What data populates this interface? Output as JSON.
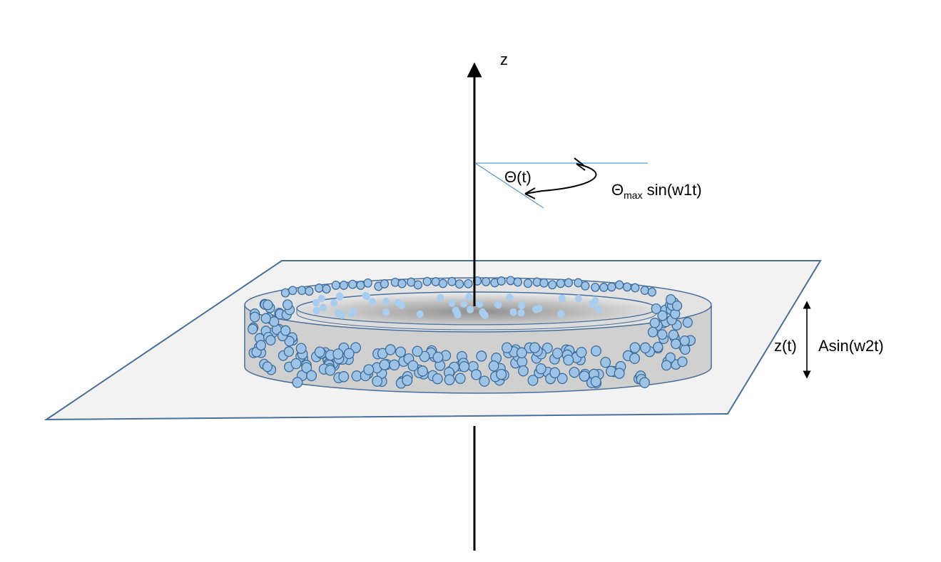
{
  "labels": {
    "z_axis": "z",
    "theta": "Θ(t)",
    "theta_sym": "Θ",
    "theta_sub": "max",
    "theta_rest": " sin(w1t)",
    "z_t": "z(t)",
    "z_formula": "Asin(w2t)"
  },
  "colors": {
    "plane_fill": "#f2f2f2",
    "plane_stroke": "#4a6f99",
    "ring_side": "#cfcfcf",
    "ring_top": "#e2e2e2",
    "ring_stroke": "#4a6f99",
    "particle_fill": "#9dc3e6",
    "particle_stroke": "#3f6d9a",
    "angle_line": "#5b9bd5",
    "axis": "#000000"
  }
}
